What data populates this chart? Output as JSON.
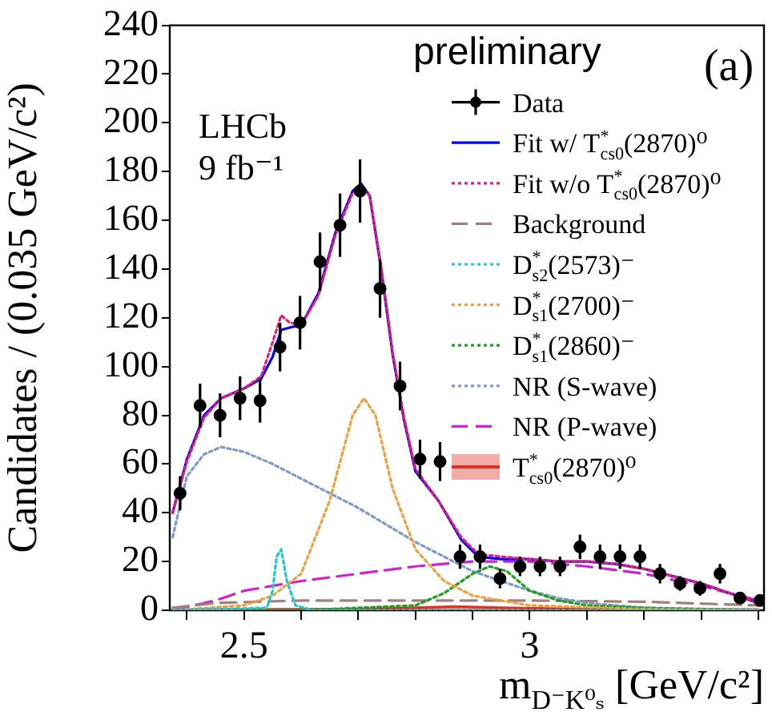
{
  "chart_data": {
    "type": "line",
    "xlabel": "m$_{D⁻K⁰ₛ}$ [GeV/c²]",
    "ylabel": "Candidates / (0.035 GeV/c²)",
    "annotations": [
      "preliminary",
      "(a)",
      "LHCb",
      "9 fb⁻¹"
    ],
    "xlim": [
      2.37,
      3.41
    ],
    "ylim": [
      0,
      240
    ],
    "xticks": [
      {
        "value": 2.4,
        "label": null
      },
      2.5,
      {
        "value": 2.6,
        "label": null
      },
      {
        "value": 2.7,
        "label": null
      },
      {
        "value": 2.8,
        "label": null
      },
      {
        "value": 2.9,
        "label": null
      },
      3,
      {
        "value": 3.1,
        "label": null
      },
      {
        "value": 3.2,
        "label": null
      },
      {
        "value": 3.3,
        "label": null
      },
      {
        "value": 3.4,
        "label": null
      }
    ],
    "yticks": [
      0,
      20,
      40,
      60,
      80,
      100,
      120,
      140,
      160,
      180,
      200,
      220,
      240
    ],
    "legend": "top right",
    "series": [
      {
        "name": "Data",
        "type": "scatter",
        "marker": "circle",
        "color": "#000000",
        "x": [
          2.388,
          2.423,
          2.458,
          2.493,
          2.528,
          2.563,
          2.598,
          2.633,
          2.668,
          2.703,
          2.738,
          2.773,
          2.808,
          2.843,
          2.878,
          2.913,
          2.948,
          2.983,
          3.018,
          3.053,
          3.088,
          3.123,
          3.158,
          3.193,
          3.228,
          3.263,
          3.298,
          3.333,
          3.368,
          3.403
        ],
        "values": [
          48,
          84,
          80,
          87,
          86,
          108,
          118,
          143,
          158,
          172,
          132,
          92,
          62,
          61,
          22,
          22,
          13,
          18,
          18,
          18,
          26,
          22,
          22,
          22,
          15,
          11,
          9,
          15,
          5,
          4
        ],
        "errors": [
          7,
          9,
          9,
          9,
          9,
          10,
          11,
          12,
          13,
          13,
          12,
          10,
          8,
          8,
          5,
          5,
          4,
          4,
          4,
          4,
          5,
          5,
          5,
          5,
          4,
          3,
          3,
          4,
          2,
          2
        ]
      },
      {
        "name": "Fit w/ T$^{*}$$_{cs0}$(2870)⁰",
        "color": "#0000ff",
        "line_style": "solid",
        "x": [
          2.375,
          2.4,
          2.43,
          2.46,
          2.5,
          2.53,
          2.55,
          2.565,
          2.58,
          2.6,
          2.63,
          2.66,
          2.69,
          2.705,
          2.72,
          2.74,
          2.76,
          2.78,
          2.8,
          2.84,
          2.88,
          2.91,
          2.95,
          3.0,
          3.05,
          3.1,
          3.15,
          3.2,
          3.25,
          3.3,
          3.35,
          3.4
        ],
        "values": [
          40,
          62,
          80,
          87,
          91,
          95,
          104,
          115,
          116,
          117,
          130,
          155,
          172,
          175,
          170,
          140,
          105,
          78,
          57,
          45,
          29,
          22,
          21,
          21,
          20,
          20,
          19,
          17,
          14,
          11,
          7,
          3
        ]
      },
      {
        "name": "Fit w/o T$^{*}$$_{cs0}$(2870)⁰",
        "color": "#e0207a",
        "line_style": "dotted",
        "x": [
          2.375,
          2.4,
          2.43,
          2.46,
          2.5,
          2.53,
          2.55,
          2.565,
          2.58,
          2.6,
          2.63,
          2.66,
          2.69,
          2.705,
          2.72,
          2.74,
          2.76,
          2.78,
          2.8,
          2.84,
          2.88,
          2.91,
          2.95,
          3.0,
          3.05,
          3.1,
          3.15,
          3.2,
          3.25,
          3.3,
          3.35,
          3.4
        ],
        "values": [
          40,
          61,
          79,
          87,
          91,
          96,
          110,
          121,
          118,
          117,
          129,
          154,
          171,
          174,
          170,
          141,
          106,
          79,
          58,
          45,
          30,
          23,
          22,
          21,
          20,
          20,
          19,
          17,
          14,
          11,
          7,
          3
        ]
      },
      {
        "name": "Background",
        "color": "#a08080",
        "line_style": "dashed",
        "x": [
          2.375,
          2.45,
          2.6,
          3.0,
          3.2,
          3.4
        ],
        "values": [
          1,
          3,
          4,
          4,
          3.5,
          2
        ]
      },
      {
        "name": "D$^{*}$$_{s2}$(2573)⁻",
        "color": "#20c8d0",
        "line_style": "dotted",
        "x": [
          2.375,
          2.54,
          2.55,
          2.557,
          2.565,
          2.575,
          2.59,
          2.62,
          3.4
        ],
        "values": [
          0,
          1,
          8,
          22,
          25,
          12,
          2,
          0,
          0
        ]
      },
      {
        "name": "D$^{*}$$_{s1}$(2700)⁻",
        "color": "#f0a040",
        "line_style": "dotted",
        "x": [
          2.375,
          2.5,
          2.55,
          2.6,
          2.65,
          2.69,
          2.71,
          2.73,
          2.76,
          2.8,
          2.85,
          2.9,
          3.0,
          3.2,
          3.4
        ],
        "values": [
          0,
          2,
          6,
          15,
          45,
          80,
          87,
          80,
          50,
          25,
          12,
          6,
          2,
          0.5,
          0
        ]
      },
      {
        "name": "D$^{*}$$_{s1}$(2860)⁻",
        "color": "#20a020",
        "line_style": "dotted",
        "x": [
          2.375,
          2.6,
          2.8,
          2.85,
          2.9,
          2.93,
          2.96,
          3.0,
          3.05,
          3.1,
          3.2,
          3.4
        ],
        "values": [
          0,
          0,
          2,
          7,
          15,
          18,
          16,
          8,
          4,
          2,
          1,
          0
        ]
      },
      {
        "name": "NR (S-wave)",
        "color": "#8098d0",
        "line_style": "dotted",
        "x": [
          2.375,
          2.4,
          2.43,
          2.46,
          2.5,
          2.55,
          2.6,
          2.65,
          2.7,
          2.75,
          2.8,
          2.85,
          2.9,
          2.95,
          3.0,
          3.05,
          3.1,
          3.2,
          3.4
        ],
        "values": [
          30,
          55,
          64,
          67,
          65,
          60,
          54,
          48,
          42,
          35,
          28,
          22,
          16,
          12,
          8,
          5,
          3,
          1,
          0
        ]
      },
      {
        "name": "NR (P-wave)",
        "color": "#d020d0",
        "line_style": "dashed",
        "x": [
          2.375,
          2.45,
          2.5,
          2.6,
          2.7,
          2.8,
          2.9,
          3.0,
          3.1,
          3.2,
          3.3,
          3.4
        ],
        "values": [
          0,
          4,
          8,
          12,
          15,
          18,
          20,
          20,
          18,
          15,
          10,
          4
        ]
      },
      {
        "name": "T$^{*}$$_{cs0}$(2870)⁰",
        "type": "area",
        "color": "#e03020",
        "x": [
          2.375,
          2.7,
          2.8,
          2.87,
          2.95,
          3.1,
          3.4
        ],
        "values": [
          0.3,
          0.5,
          1,
          1.5,
          1,
          0.5,
          0.3
        ]
      }
    ]
  }
}
